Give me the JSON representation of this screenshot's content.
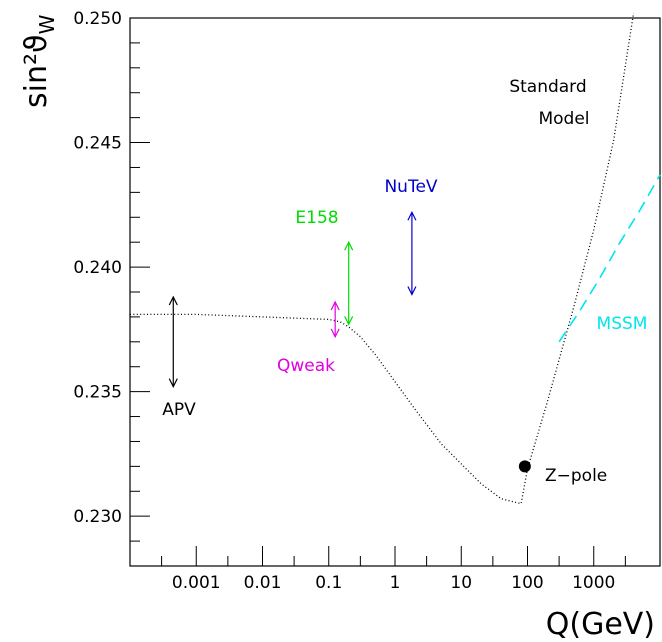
{
  "chart_data": {
    "type": "line",
    "ylabel": "sin²ϑ",
    "ylabel_sub": "W",
    "xlabel": "Q(GeV)",
    "x_scale": "log",
    "xlim": [
      0.0001,
      10000
    ],
    "ylim": [
      0.228,
      0.25
    ],
    "x_ticks": [
      {
        "value": 0.001,
        "label": "0.001"
      },
      {
        "value": 0.01,
        "label": "0.01"
      },
      {
        "value": 0.1,
        "label": "0.1"
      },
      {
        "value": 1,
        "label": "1"
      },
      {
        "value": 10,
        "label": "10"
      },
      {
        "value": 100,
        "label": "100"
      },
      {
        "value": 1000,
        "label": "1000"
      }
    ],
    "y_ticks": [
      {
        "value": 0.23,
        "label": "0.230"
      },
      {
        "value": 0.235,
        "label": "0.235"
      },
      {
        "value": 0.24,
        "label": "0.240"
      },
      {
        "value": 0.245,
        "label": "0.245"
      },
      {
        "value": 0.25,
        "label": "0.250"
      }
    ],
    "series": [
      {
        "name": "Standard Model",
        "style": "dotted",
        "color": "#000000",
        "x": [
          0.0001,
          0.001,
          0.01,
          0.1,
          0.15,
          0.2,
          0.3,
          0.5,
          1,
          2,
          5,
          10,
          20,
          40,
          80,
          100,
          200,
          500,
          1000,
          2000,
          4000
        ],
        "y": [
          0.2381,
          0.2381,
          0.238,
          0.2379,
          0.2378,
          0.2376,
          0.2372,
          0.2365,
          0.2354,
          0.2343,
          0.2329,
          0.2321,
          0.2313,
          0.2307,
          0.2305,
          0.2319,
          0.2346,
          0.2384,
          0.2415,
          0.2451,
          0.2502
        ]
      },
      {
        "name": "MSSM",
        "style": "dashed",
        "color": "#00e5ee",
        "x": [
          300,
          600,
          1200,
          2500,
          5000,
          10000
        ],
        "y": [
          0.237,
          0.2382,
          0.2395,
          0.241,
          0.2423,
          0.2437
        ]
      }
    ],
    "points": [
      {
        "label": "Z-pole",
        "x": 91.2,
        "y": 0.232
      }
    ],
    "arrows": [
      {
        "label": "APV",
        "x": 0.00045,
        "ylow": 0.2352,
        "yhigh": 0.2388,
        "color": "#000000"
      },
      {
        "label": "Qweak",
        "x": 0.125,
        "ylow": 0.2372,
        "yhigh": 0.2386,
        "color": "#e000e0"
      },
      {
        "label": "E158",
        "x": 0.2,
        "ylow": 0.2377,
        "yhigh": 0.241,
        "color": "#00dd00"
      },
      {
        "label": "NuTeV",
        "x": 1.8,
        "ylow": 0.2389,
        "yhigh": 0.2422,
        "color": "#0000cc"
      }
    ],
    "annotations": [
      {
        "text": "Standard",
        "color": "#000000"
      },
      {
        "text": "Model",
        "color": "#000000"
      },
      {
        "text": "MSSM",
        "color": "#00e5ee"
      },
      {
        "text": "E158",
        "color": "#00dd00"
      },
      {
        "text": "NuTeV",
        "color": "#0000cc"
      },
      {
        "text": "Qweak",
        "color": "#e000e0"
      },
      {
        "text": "APV",
        "color": "#000000"
      },
      {
        "text": "Z−pole",
        "color": "#000000"
      }
    ]
  }
}
